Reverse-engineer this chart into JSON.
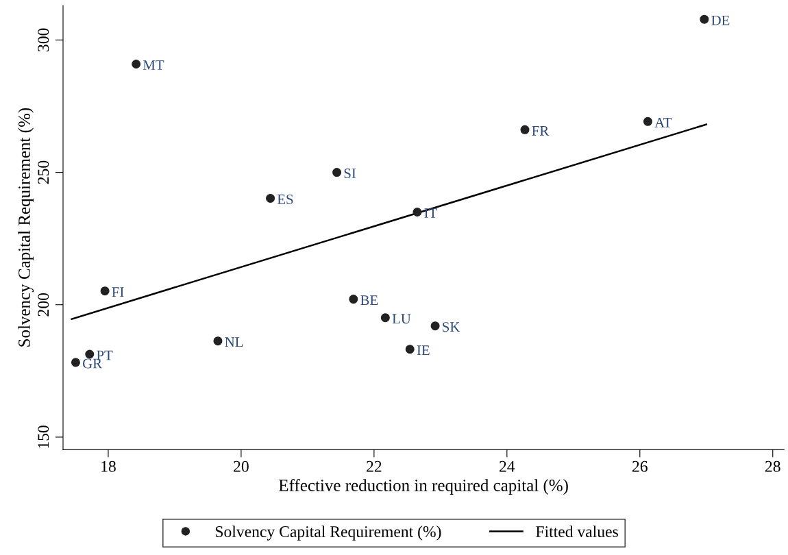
{
  "chart_data": {
    "type": "scatter",
    "xlabel": "Effective reduction in required capital (%)",
    "ylabel": "Solvency Capital Requirement (%)",
    "xlim": [
      17.32,
      28.17
    ],
    "ylim": [
      145.3,
      313
    ],
    "xticks": [
      18,
      20,
      22,
      24,
      26,
      28
    ],
    "yticks": [
      150,
      200,
      250,
      300
    ],
    "grid": false,
    "legend": "bottom",
    "series": [
      {
        "name": "Solvency Capital Requirement (%)",
        "marker": "circle",
        "color": "#222222",
        "x": [
          26.97,
          18.42,
          26.12,
          24.27,
          21.44,
          20.44,
          22.65,
          17.95,
          21.69,
          22.17,
          22.92,
          19.65,
          22.54,
          17.72,
          17.51
        ],
        "values": [
          307.8,
          290.9,
          269.2,
          266.1,
          250,
          240.2,
          235,
          205.2,
          202.1,
          195.1,
          192,
          186.3,
          183.2,
          181.3,
          178.2
        ]
      },
      {
        "name": "Fitted values",
        "type": "line",
        "marker": "none",
        "color": "#000000",
        "x": [
          17.45,
          27.0
        ],
        "values": [
          194.6,
          268.1
        ]
      }
    ],
    "annotations": [
      {
        "text": "DE",
        "x": 26.97,
        "y": 307.8
      },
      {
        "text": "MT",
        "x": 18.42,
        "y": 290.9
      },
      {
        "text": "AT",
        "x": 26.12,
        "y": 269.2
      },
      {
        "text": "FR",
        "x": 24.27,
        "y": 266.1
      },
      {
        "text": "SI",
        "x": 21.44,
        "y": 250
      },
      {
        "text": "ES",
        "x": 20.44,
        "y": 240.2
      },
      {
        "text": "IT",
        "x": 22.65,
        "y": 235
      },
      {
        "text": "FI",
        "x": 17.95,
        "y": 205.2
      },
      {
        "text": "BE",
        "x": 21.69,
        "y": 202.1
      },
      {
        "text": "LU",
        "x": 22.17,
        "y": 195.1
      },
      {
        "text": "SK",
        "x": 22.92,
        "y": 192
      },
      {
        "text": "NL",
        "x": 19.65,
        "y": 186.3
      },
      {
        "text": "IE",
        "x": 22.54,
        "y": 183.2
      },
      {
        "text": "PT",
        "x": 17.72,
        "y": 181.3
      },
      {
        "text": "GR",
        "x": 17.51,
        "y": 178.2
      }
    ]
  }
}
